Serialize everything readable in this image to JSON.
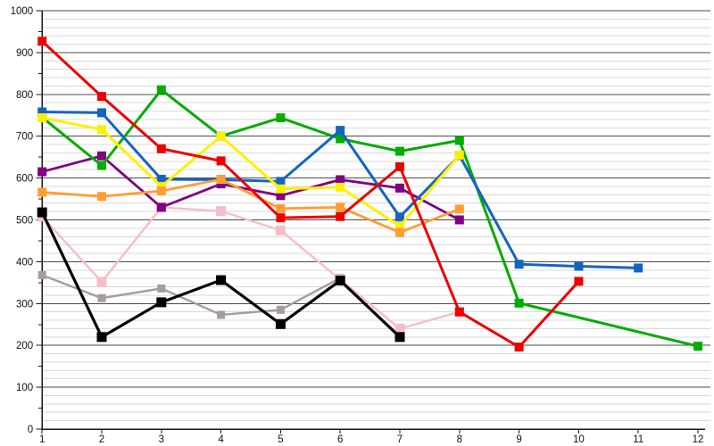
{
  "chart_data": {
    "type": "line",
    "x_tick_labels": [
      "1",
      "2",
      "3",
      "4",
      "5",
      "6",
      "7",
      "8",
      "9",
      "10",
      "11",
      "12"
    ],
    "y_tick_labels": [
      "0",
      "100",
      "200",
      "300",
      "400",
      "500",
      "600",
      "700",
      "800",
      "900",
      "1000"
    ],
    "x_range": [
      1,
      12
    ],
    "y_range": [
      0,
      1000
    ],
    "y_major_step": 100,
    "y_minor_step": 20,
    "grid": {
      "horizontal_major": true,
      "horizontal_minor": true,
      "vertical": false
    },
    "legend_position": "none",
    "marker_shape": "square",
    "axis_color": "#1a1a1a",
    "major_grid_color": "#4b4b4b",
    "minor_grid_color": "#d9d9d9",
    "series": [
      {
        "name": "gray",
        "color": "#a89b9b",
        "line_width": 2.4,
        "marker_size": 9,
        "points": [
          [
            1,
            368
          ],
          [
            2,
            313
          ],
          [
            3,
            336
          ],
          [
            4,
            273
          ],
          [
            5,
            285
          ],
          [
            6,
            361
          ]
        ]
      },
      {
        "name": "pink",
        "color": "#f6bdc9",
        "line_width": 2.4,
        "marker_size": 11,
        "points": [
          [
            1,
            508
          ],
          [
            2,
            352
          ],
          [
            3,
            530
          ],
          [
            4,
            521
          ],
          [
            5,
            475
          ],
          [
            6,
            357
          ],
          [
            7,
            240
          ],
          [
            8,
            280
          ]
        ]
      },
      {
        "name": "purple",
        "color": "#800080",
        "line_width": 2.8,
        "marker_size": 10,
        "points": [
          [
            1,
            615
          ],
          [
            2,
            653
          ],
          [
            3,
            530
          ],
          [
            4,
            586
          ],
          [
            5,
            558
          ],
          [
            6,
            596
          ],
          [
            7,
            576
          ],
          [
            8,
            500
          ]
        ]
      },
      {
        "name": "green",
        "color": "#00ad00",
        "line_width": 3.0,
        "marker_size": 10,
        "points": [
          [
            1,
            745
          ],
          [
            2,
            630
          ],
          [
            3,
            811
          ],
          [
            4,
            700
          ],
          [
            5,
            744
          ],
          [
            6,
            694
          ],
          [
            7,
            664
          ],
          [
            8,
            690
          ],
          [
            9,
            301
          ],
          [
            12,
            198
          ]
        ]
      },
      {
        "name": "blue",
        "color": "#1565c0",
        "line_width": 3.0,
        "marker_size": 10,
        "points": [
          [
            1,
            758
          ],
          [
            2,
            756
          ],
          [
            3,
            597
          ],
          [
            4,
            596
          ],
          [
            5,
            592
          ],
          [
            6,
            714
          ],
          [
            7,
            507
          ],
          [
            8,
            654
          ],
          [
            9,
            394
          ],
          [
            10,
            389
          ],
          [
            11,
            385
          ]
        ]
      },
      {
        "name": "yellow",
        "color": "#fff000",
        "line_width": 3.0,
        "marker_size": 10,
        "points": [
          [
            1,
            744
          ],
          [
            2,
            716
          ],
          [
            3,
            580
          ],
          [
            4,
            700
          ],
          [
            5,
            574
          ],
          [
            6,
            578
          ],
          [
            7,
            485
          ],
          [
            8,
            655
          ]
        ]
      },
      {
        "name": "orange",
        "color": "#ff9e33",
        "line_width": 2.8,
        "marker_size": 10,
        "points": [
          [
            1,
            566
          ],
          [
            2,
            556
          ],
          [
            3,
            569
          ],
          [
            4,
            597
          ],
          [
            5,
            527
          ],
          [
            6,
            530
          ],
          [
            7,
            470
          ],
          [
            8,
            526
          ]
        ]
      },
      {
        "name": "black",
        "color": "#000000",
        "line_width": 3.2,
        "marker_size": 11,
        "points": [
          [
            1,
            518
          ],
          [
            2,
            220
          ],
          [
            3,
            303
          ],
          [
            4,
            356
          ],
          [
            5,
            251
          ],
          [
            6,
            355
          ],
          [
            7,
            220
          ]
        ]
      },
      {
        "name": "red",
        "color": "#ee0000",
        "line_width": 3.0,
        "marker_size": 10,
        "points": [
          [
            1,
            927
          ],
          [
            2,
            795
          ],
          [
            3,
            670
          ],
          [
            4,
            641
          ],
          [
            5,
            505
          ],
          [
            6,
            508
          ],
          [
            7,
            627
          ],
          [
            8,
            280
          ],
          [
            9,
            196
          ],
          [
            10,
            353
          ]
        ]
      }
    ]
  }
}
